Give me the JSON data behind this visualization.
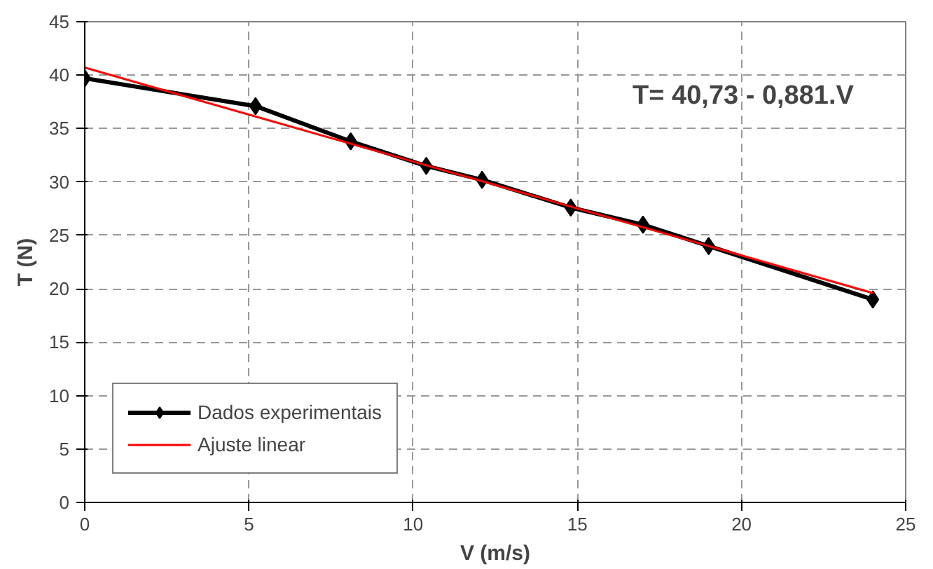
{
  "chart_data": {
    "type": "line",
    "xlabel": "V (m/s)",
    "ylabel": "T (N)",
    "xlim": [
      0,
      25
    ],
    "ylim": [
      0,
      45
    ],
    "xticks": [
      0,
      5,
      10,
      15,
      20,
      25
    ],
    "yticks": [
      0,
      5,
      10,
      15,
      20,
      25,
      30,
      35,
      40,
      45
    ],
    "grid": true,
    "legend": "bottom left",
    "series": [
      {
        "name": "Dados experimentais",
        "color": "#000000",
        "marker": "diamond",
        "x": [
          0,
          5.2,
          8.1,
          10.4,
          12.1,
          14.8,
          17,
          19,
          24
        ],
        "values": [
          39.7,
          37.1,
          33.8,
          31.5,
          30.2,
          27.6,
          26,
          24,
          19
        ]
      },
      {
        "name": "Ajuste linear",
        "color": "#ff0000",
        "marker": "none",
        "x": [
          0,
          24
        ],
        "values": [
          40.7,
          19.6
        ]
      }
    ],
    "annotations": [
      "T= 40,73 - 0,881.V"
    ]
  }
}
